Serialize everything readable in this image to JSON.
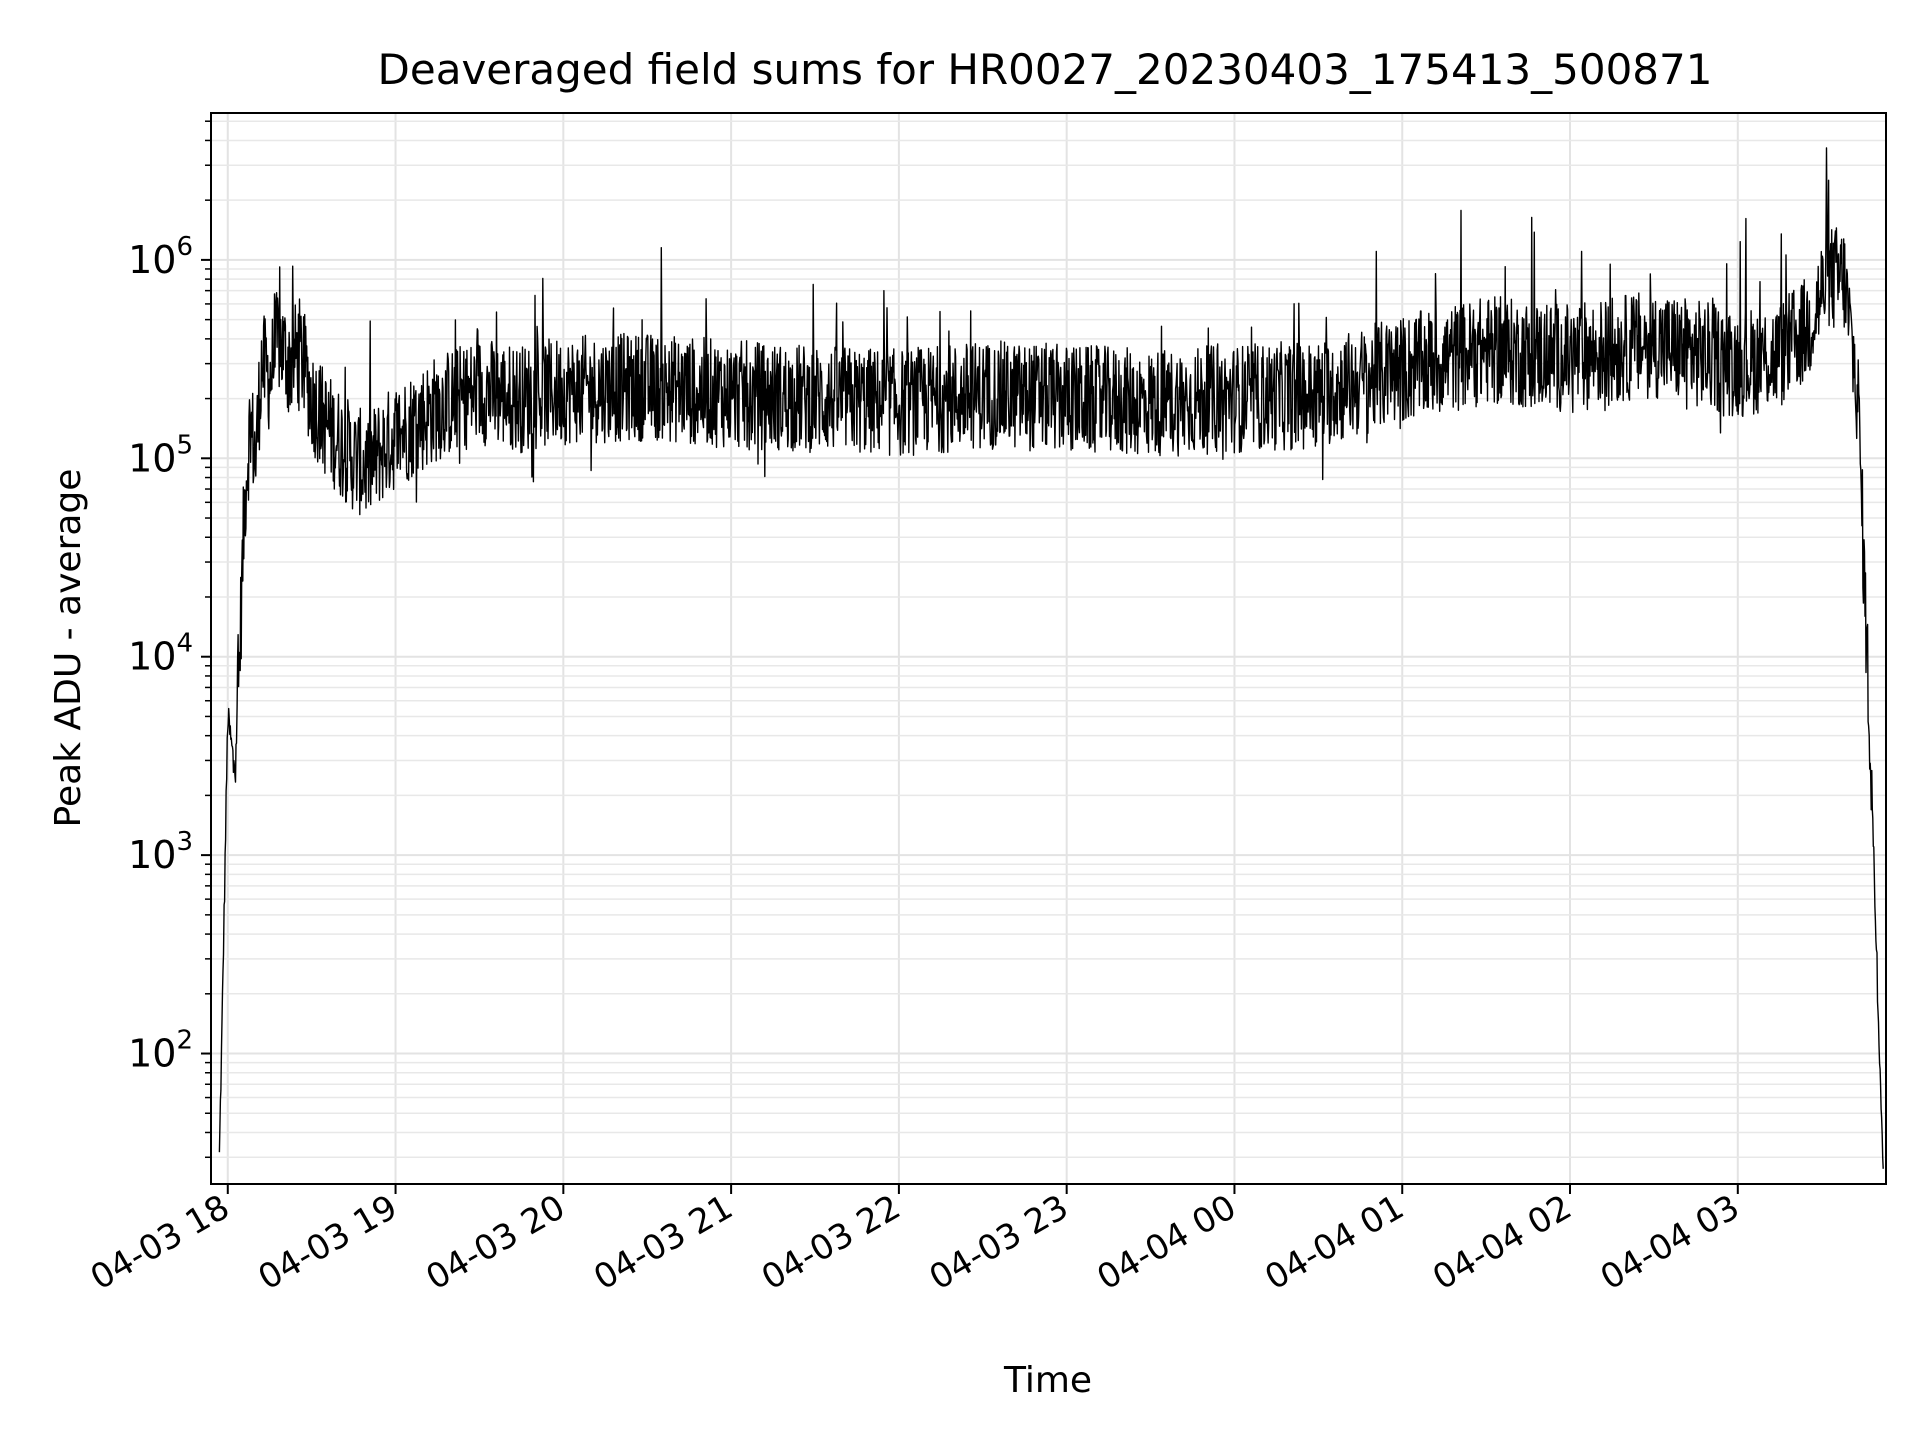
{
  "chart_data": {
    "type": "line",
    "title": "Deaveraged field sums for HR0027_20230403_175413_500871",
    "xlabel": "Time",
    "ylabel": "Peak ADU - average",
    "yscale": "log",
    "ylim": [
      22,
      5500000
    ],
    "xlim": [
      "2023-04-03 17:54",
      "2023-04-04 03:53"
    ],
    "grid": true,
    "x_tick_labels": [
      "04-03 18",
      "04-03 19",
      "04-03 20",
      "04-03 21",
      "04-03 22",
      "04-03 23",
      "04-04 00",
      "04-04 01",
      "04-04 02",
      "04-04 03"
    ],
    "x_ticks": [
      "2023-04-03 18:00",
      "2023-04-03 19:00",
      "2023-04-03 20:00",
      "2023-04-03 21:00",
      "2023-04-03 22:00",
      "2023-04-03 23:00",
      "2023-04-04 00:00",
      "2023-04-04 01:00",
      "2023-04-04 02:00",
      "2023-04-04 03:00"
    ],
    "y_ticks": [
      {
        "base": "10",
        "exp": "2",
        "value": 100
      },
      {
        "base": "10",
        "exp": "3",
        "value": 1000
      },
      {
        "base": "10",
        "exp": "4",
        "value": 10000
      },
      {
        "base": "10",
        "exp": "5",
        "value": 100000
      },
      {
        "base": "10",
        "exp": "6",
        "value": 1000000
      }
    ],
    "series": [
      {
        "color": "#000000",
        "x": [
          "2023-04-03 17:57",
          "2023-04-03 17:58",
          "2023-04-03 18:00",
          "2023-04-03 18:02",
          "2023-04-03 18:04",
          "2023-04-03 18:06",
          "2023-04-03 18:08",
          "2023-04-03 18:10",
          "2023-04-03 18:12",
          "2023-04-03 18:15",
          "2023-04-03 18:18",
          "2023-04-03 18:22",
          "2023-04-03 18:26",
          "2023-04-03 18:30",
          "2023-04-03 18:35",
          "2023-04-03 18:40",
          "2023-04-03 18:45",
          "2023-04-03 18:50",
          "2023-04-03 18:55",
          "2023-04-03 19:00",
          "2023-04-03 19:15",
          "2023-04-03 19:30",
          "2023-04-03 19:45",
          "2023-04-03 20:00",
          "2023-04-03 20:30",
          "2023-04-03 21:00",
          "2023-04-03 21:30",
          "2023-04-03 22:00",
          "2023-04-03 22:30",
          "2023-04-03 23:00",
          "2023-04-03 23:30",
          "2023-04-04 00:00",
          "2023-04-04 00:30",
          "2023-04-04 01:00",
          "2023-04-04 01:30",
          "2023-04-04 02:00",
          "2023-04-04 02:30",
          "2023-04-04 03:00",
          "2023-04-04 03:15",
          "2023-04-04 03:25",
          "2023-04-04 03:32",
          "2023-04-04 03:38",
          "2023-04-04 03:43",
          "2023-04-04 03:48",
          "2023-04-04 03:50",
          "2023-04-04 03:52"
        ],
        "y": [
          30,
          150,
          5000,
          3000,
          8000,
          60000,
          150000,
          100000,
          300000,
          250000,
          400000,
          300000,
          350000,
          200000,
          150000,
          120000,
          100000,
          90000,
          110000,
          130000,
          180000,
          220000,
          200000,
          220000,
          230000,
          210000,
          200000,
          190000,
          210000,
          200000,
          190000,
          200000,
          210000,
          280000,
          350000,
          320000,
          380000,
          300000,
          330000,
          450000,
          800000,
          800000,
          200000,
          2000,
          200,
          30
        ]
      }
    ]
  }
}
